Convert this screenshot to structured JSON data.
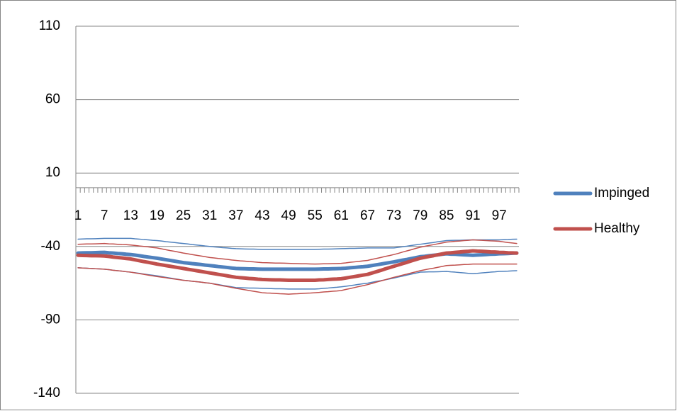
{
  "chart_data": {
    "type": "line",
    "categories": [
      1,
      null,
      null,
      null,
      null,
      null,
      7,
      null,
      null,
      null,
      null,
      null,
      13,
      null,
      null,
      null,
      null,
      null,
      19,
      null,
      null,
      null,
      null,
      null,
      25,
      null,
      null,
      null,
      null,
      null,
      31,
      null,
      null,
      null,
      null,
      null,
      37,
      null,
      null,
      null,
      null,
      null,
      43,
      null,
      null,
      null,
      null,
      null,
      49,
      null,
      null,
      null,
      null,
      null,
      55,
      null,
      null,
      null,
      null,
      null,
      61,
      null,
      null,
      null,
      null,
      null,
      67,
      null,
      null,
      null,
      null,
      null,
      73,
      null,
      null,
      null,
      null,
      null,
      79,
      null,
      null,
      null,
      null,
      null,
      85,
      null,
      null,
      null,
      null,
      null,
      91,
      null,
      null,
      null,
      null,
      null,
      97,
      null,
      null,
      null,
      null
    ],
    "ylim": [
      -140,
      110
    ],
    "yticks": [
      -140,
      -90,
      -40,
      10,
      60,
      110
    ],
    "grid": true,
    "legend": "right",
    "series": [
      {
        "name": "Impinged",
        "color": "#4f81bd",
        "line_width": 5,
        "values": [
          -44.5,
          -44.4,
          -44.3,
          -44.3,
          -44.2,
          -44.1,
          -44,
          -44.3,
          -44.5,
          -44.8,
          -45,
          -45.3,
          -45.5,
          -45.9,
          -46.3,
          -46.8,
          -47.2,
          -47.6,
          -48,
          -48.5,
          -49,
          -49.5,
          -50,
          -50.5,
          -51,
          -51.3,
          -51.7,
          -52,
          -52.3,
          -52.7,
          -53,
          -53.3,
          -53.7,
          -54,
          -54.3,
          -54.7,
          -55,
          -55.1,
          -55.2,
          -55.3,
          -55.3,
          -55.4,
          -55.5,
          -55.5,
          -55.5,
          -55.5,
          -55.5,
          -55.5,
          -55.5,
          -55.5,
          -55.5,
          -55.5,
          -55.5,
          -55.5,
          -55.5,
          -55.4,
          -55.3,
          -55.3,
          -55.2,
          -55.1,
          -55,
          -54.8,
          -54.5,
          -54.3,
          -54,
          -53.8,
          -53.5,
          -53,
          -52.5,
          -52,
          -51.5,
          -51,
          -50.5,
          -49.9,
          -49.3,
          -48.8,
          -48.2,
          -47.6,
          -47,
          -46.7,
          -46.3,
          -46,
          -45.7,
          -45.3,
          -45,
          -45.2,
          -45.3,
          -45.5,
          -45.7,
          -45.8,
          -46,
          -45.8,
          -45.7,
          -45.5,
          -45.3,
          -45.2,
          -45,
          -44.9,
          -44.8,
          -44.6,
          -44.5
        ]
      },
      {
        "name": "Healthy",
        "color": "#c0504d",
        "line_width": 5,
        "values": [
          -46,
          -46.1,
          -46.2,
          -46.3,
          -46.3,
          -46.4,
          -46.5,
          -46.8,
          -47.2,
          -47.5,
          -47.8,
          -48.2,
          -48.5,
          -49.1,
          -49.7,
          -50.3,
          -50.8,
          -51.4,
          -52,
          -52.5,
          -53,
          -53.5,
          -54,
          -54.5,
          -55,
          -55.5,
          -56,
          -56.5,
          -57,
          -57.5,
          -58,
          -58.5,
          -59,
          -59.5,
          -60,
          -60.5,
          -61,
          -61.3,
          -61.5,
          -61.8,
          -62,
          -62.3,
          -62.5,
          -62.6,
          -62.7,
          -62.8,
          -62.8,
          -62.9,
          -63,
          -63,
          -63,
          -63,
          -63,
          -63,
          -63,
          -62.8,
          -62.7,
          -62.5,
          -62.3,
          -62.2,
          -62,
          -61.5,
          -61,
          -60.5,
          -60,
          -59.5,
          -59,
          -58.1,
          -57.2,
          -56.3,
          -55.3,
          -54.4,
          -53.5,
          -52.6,
          -51.7,
          -50.8,
          -49.8,
          -48.9,
          -48,
          -47.4,
          -46.8,
          -46.3,
          -45.7,
          -45.1,
          -44.5,
          -44.3,
          -44,
          -43.8,
          -43.5,
          -43.3,
          -43,
          -43.2,
          -43.3,
          -43.5,
          -43.7,
          -43.8,
          -44,
          -44.1,
          -44.3,
          -44.4,
          -44.5
        ]
      },
      {
        "color": "#4f81bd",
        "line_width": 1.5,
        "values": [
          -35,
          -34.9,
          -34.8,
          -34.8,
          -34.7,
          -34.6,
          -34.5,
          -34.5,
          -34.5,
          -34.5,
          -34.5,
          -34.5,
          -34.5,
          -34.8,
          -35,
          -35.3,
          -35.5,
          -35.8,
          -36,
          -36.3,
          -36.7,
          -37,
          -37.3,
          -37.7,
          -38,
          -38.3,
          -38.7,
          -39,
          -39.3,
          -39.7,
          -40,
          -40.3,
          -40.5,
          -40.8,
          -41,
          -41.3,
          -41.5,
          -41.6,
          -41.7,
          -41.8,
          -41.8,
          -41.9,
          -42,
          -42,
          -42,
          -42,
          -42,
          -42,
          -42,
          -42,
          -42,
          -42,
          -42,
          -42,
          -42,
          -41.9,
          -41.8,
          -41.8,
          -41.7,
          -41.6,
          -41.5,
          -41.4,
          -41.3,
          -41.3,
          -41.2,
          -41.1,
          -41,
          -41,
          -41,
          -41,
          -41,
          -41,
          -41,
          -40.6,
          -40.2,
          -39.8,
          -39.3,
          -38.9,
          -38.5,
          -38.1,
          -37.7,
          -37.3,
          -36.8,
          -36.4,
          -36,
          -35.9,
          -35.8,
          -35.8,
          -35.7,
          -35.6,
          -35.5,
          -35.5,
          -35.5,
          -35.5,
          -35.5,
          -35.5,
          -35.5,
          -35.4,
          -35.3,
          -35.1,
          -35
        ]
      },
      {
        "color": "#4f81bd",
        "line_width": 1.5,
        "values": [
          -54.5,
          -54.7,
          -54.8,
          -55,
          -55.2,
          -55.3,
          -55.5,
          -55.8,
          -56.2,
          -56.5,
          -56.8,
          -57.2,
          -57.5,
          -57.9,
          -58.3,
          -58.8,
          -59.2,
          -59.6,
          -60,
          -60.5,
          -61,
          -61.5,
          -62,
          -62.5,
          -63,
          -63.3,
          -63.7,
          -64,
          -64.3,
          -64.7,
          -65,
          -65.5,
          -66,
          -66.5,
          -67,
          -67.5,
          -68,
          -68.1,
          -68.2,
          -68.3,
          -68.3,
          -68.4,
          -68.5,
          -68.6,
          -68.7,
          -68.8,
          -68.8,
          -68.9,
          -69,
          -69,
          -69,
          -69,
          -69,
          -69,
          -69,
          -68.8,
          -68.5,
          -68.3,
          -68,
          -67.8,
          -67.5,
          -67.1,
          -66.7,
          -66.3,
          -65.8,
          -65.4,
          -65,
          -64.4,
          -63.8,
          -63.3,
          -62.7,
          -62.1,
          -61.5,
          -60.8,
          -60.2,
          -59.5,
          -58.8,
          -58.2,
          -57.5,
          -57.4,
          -57.3,
          -57.3,
          -57.2,
          -57.1,
          -57,
          -57.3,
          -57.5,
          -57.8,
          -58,
          -58.3,
          -58.5,
          -58.3,
          -58,
          -57.8,
          -57.5,
          -57.3,
          -57,
          -56.9,
          -56.8,
          -56.6,
          -56.5
        ]
      },
      {
        "color": "#c0504d",
        "line_width": 1.5,
        "values": [
          -38.5,
          -38.4,
          -38.3,
          -38.3,
          -38.2,
          -38.1,
          -38,
          -38.2,
          -38.3,
          -38.5,
          -38.7,
          -38.8,
          -39,
          -39.3,
          -39.7,
          -40,
          -40.3,
          -40.7,
          -41,
          -41.6,
          -42.2,
          -42.8,
          -43.3,
          -43.9,
          -44.5,
          -45,
          -45.5,
          -46,
          -46.5,
          -47,
          -47.5,
          -47.8,
          -48.2,
          -48.5,
          -48.8,
          -49.2,
          -49.5,
          -49.8,
          -50,
          -50.3,
          -50.5,
          -50.8,
          -51,
          -51.1,
          -51.2,
          -51.3,
          -51.3,
          -51.4,
          -51.5,
          -51.6,
          -51.7,
          -51.8,
          -51.8,
          -51.9,
          -52,
          -51.9,
          -51.8,
          -51.8,
          -51.7,
          -51.6,
          -51.5,
          -51.2,
          -50.8,
          -50.5,
          -50.2,
          -49.8,
          -49.5,
          -48.8,
          -48.2,
          -47.5,
          -46.8,
          -46.2,
          -45.5,
          -44.7,
          -43.8,
          -43,
          -42.2,
          -41.3,
          -40.5,
          -39.9,
          -39.3,
          -38.8,
          -38.2,
          -37.6,
          -37,
          -36.8,
          -36.5,
          -36.3,
          -36,
          -35.8,
          -35.5,
          -35.7,
          -35.8,
          -36,
          -36.2,
          -36.3,
          -36.5,
          -36.9,
          -37.3,
          -37.6,
          -38
        ]
      },
      {
        "color": "#c0504d",
        "line_width": 1.5,
        "values": [
          -54.5,
          -54.7,
          -54.8,
          -55,
          -55.2,
          -55.3,
          -55.5,
          -55.8,
          -56.2,
          -56.5,
          -56.8,
          -57.2,
          -57.5,
          -58,
          -58.5,
          -59,
          -59.5,
          -60,
          -60.5,
          -60.9,
          -61.3,
          -61.8,
          -62.2,
          -62.6,
          -63,
          -63.3,
          -63.7,
          -64,
          -64.3,
          -64.7,
          -65,
          -65.6,
          -66.2,
          -66.8,
          -67.3,
          -67.9,
          -68.5,
          -69,
          -69.5,
          -70,
          -70.5,
          -71,
          -71.5,
          -71.7,
          -71.8,
          -72,
          -72.2,
          -72.3,
          -72.5,
          -72.3,
          -72.2,
          -72,
          -71.8,
          -71.7,
          -71.5,
          -71.3,
          -71,
          -70.8,
          -70.5,
          -70.3,
          -70,
          -69.3,
          -68.7,
          -68,
          -67.3,
          -66.7,
          -66,
          -65.2,
          -64.3,
          -63.5,
          -62.7,
          -61.8,
          -61,
          -60.3,
          -59.5,
          -58.8,
          -58,
          -57.3,
          -56.5,
          -55.9,
          -55.3,
          -54.8,
          -54.2,
          -53.6,
          -53,
          -52.8,
          -52.7,
          -52.5,
          -52.3,
          -52.2,
          -52,
          -52,
          -52,
          -52,
          -52,
          -52,
          -52,
          -52,
          -52,
          -52,
          -52
        ]
      }
    ]
  }
}
